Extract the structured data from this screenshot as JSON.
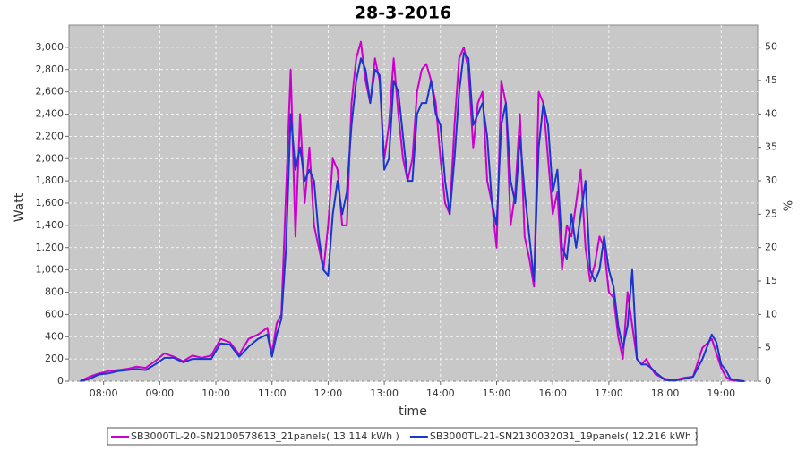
{
  "chart_data": {
    "type": "line",
    "title": "28-3-2016",
    "xlabel": "time",
    "ylabel": "Watt",
    "y2label": "%",
    "x": [
      "07:35",
      "07:45",
      "07:55",
      "08:05",
      "08:15",
      "08:25",
      "08:35",
      "08:45",
      "08:55",
      "09:05",
      "09:15",
      "09:25",
      "09:35",
      "09:45",
      "09:55",
      "10:05",
      "10:15",
      "10:25",
      "10:35",
      "10:45",
      "10:55",
      "11:00",
      "11:05",
      "11:10",
      "11:15",
      "11:20",
      "11:25",
      "11:30",
      "11:35",
      "11:40",
      "11:45",
      "11:50",
      "11:55",
      "12:00",
      "12:05",
      "12:10",
      "12:15",
      "12:20",
      "12:25",
      "12:30",
      "12:35",
      "12:40",
      "12:45",
      "12:50",
      "12:55",
      "13:00",
      "13:05",
      "13:10",
      "13:15",
      "13:20",
      "13:25",
      "13:30",
      "13:35",
      "13:40",
      "13:45",
      "13:50",
      "13:55",
      "14:00",
      "14:05",
      "14:10",
      "14:15",
      "14:20",
      "14:25",
      "14:30",
      "14:35",
      "14:40",
      "14:45",
      "14:50",
      "14:55",
      "15:00",
      "15:05",
      "15:10",
      "15:15",
      "15:20",
      "15:25",
      "15:30",
      "15:35",
      "15:40",
      "15:45",
      "15:50",
      "15:55",
      "16:00",
      "16:05",
      "16:10",
      "16:15",
      "16:20",
      "16:25",
      "16:30",
      "16:35",
      "16:40",
      "16:45",
      "16:50",
      "16:55",
      "17:00",
      "17:05",
      "17:10",
      "17:15",
      "17:20",
      "17:25",
      "17:30",
      "17:35",
      "17:40",
      "17:45",
      "17:50",
      "18:00",
      "18:10",
      "18:20",
      "18:30",
      "18:40",
      "18:50",
      "18:55",
      "19:00",
      "19:05",
      "19:10",
      "19:20",
      "19:25"
    ],
    "series": [
      {
        "name": "SB3000TL-20-SN2100578613_21panels( 13.114 kWh )",
        "color": "#cc00cc",
        "values": [
          0,
          40,
          70,
          90,
          100,
          110,
          130,
          120,
          180,
          250,
          220,
          180,
          230,
          210,
          230,
          380,
          350,
          240,
          380,
          420,
          480,
          250,
          520,
          600,
          1700,
          2800,
          1300,
          2400,
          1600,
          2100,
          1400,
          1200,
          1000,
          1400,
          2000,
          1900,
          1400,
          1400,
          2500,
          2900,
          3050,
          2700,
          2500,
          2900,
          2700,
          2000,
          2300,
          2900,
          2400,
          2000,
          1800,
          2000,
          2600,
          2800,
          2850,
          2700,
          2500,
          2000,
          1600,
          1500,
          2300,
          2900,
          3000,
          2800,
          2100,
          2500,
          2600,
          1800,
          1600,
          1200,
          2700,
          2500,
          1400,
          1700,
          2400,
          1300,
          1100,
          850,
          2600,
          2500,
          2000,
          1500,
          1700,
          1000,
          1400,
          1300,
          1600,
          1900,
          1200,
          900,
          1050,
          1300,
          1200,
          800,
          750,
          400,
          200,
          800,
          500,
          200,
          150,
          200,
          120,
          60,
          20,
          10,
          30,
          40,
          300,
          380,
          250,
          120,
          40,
          10,
          0,
          0
        ]
      },
      {
        "name": "SB3000TL-21-SN2130032031_19panels( 12.216 kWh )",
        "color": "#1a36cc",
        "values": [
          0,
          20,
          60,
          70,
          90,
          100,
          110,
          100,
          150,
          210,
          210,
          170,
          200,
          200,
          200,
          340,
          330,
          220,
          310,
          380,
          420,
          220,
          420,
          560,
          1200,
          2400,
          1900,
          2100,
          1800,
          1900,
          1800,
          1300,
          1000,
          950,
          1500,
          1800,
          1500,
          1700,
          2300,
          2700,
          2900,
          2800,
          2500,
          2800,
          2750,
          1900,
          2000,
          2700,
          2600,
          2200,
          1800,
          1800,
          2400,
          2500,
          2500,
          2700,
          2400,
          2300,
          1800,
          1500,
          2000,
          2600,
          2950,
          2900,
          2300,
          2400,
          2500,
          2200,
          1600,
          1400,
          2300,
          2500,
          1800,
          1600,
          2200,
          1700,
          1300,
          900,
          2100,
          2500,
          2300,
          1700,
          1900,
          1200,
          1100,
          1500,
          1200,
          1500,
          1800,
          1000,
          900,
          1000,
          1300,
          1000,
          850,
          500,
          300,
          500,
          1000,
          200,
          150,
          150,
          120,
          80,
          10,
          5,
          20,
          40,
          200,
          420,
          350,
          150,
          100,
          20,
          5,
          0
        ]
      }
    ],
    "xlim": [
      "07:23",
      "19:39"
    ],
    "xticks": [
      "08:00",
      "09:00",
      "10:00",
      "11:00",
      "12:00",
      "13:00",
      "14:00",
      "15:00",
      "16:00",
      "17:00",
      "18:00",
      "19:00"
    ],
    "ylim": [
      0,
      3200
    ],
    "yticks": [
      0,
      200,
      400,
      600,
      800,
      {
        "value": 1000,
        "label": "1,000"
      },
      {
        "value": 1200,
        "label": "1,200"
      },
      {
        "value": 1400,
        "label": "1,400"
      },
      {
        "value": 1600,
        "label": "1,600"
      },
      {
        "value": 1800,
        "label": "1,800"
      },
      {
        "value": 2000,
        "label": "2,000"
      },
      {
        "value": 2200,
        "label": "2,200"
      },
      {
        "value": 2400,
        "label": "2,400"
      },
      {
        "value": 2600,
        "label": "2,600"
      },
      {
        "value": 2800,
        "label": "2,800"
      },
      {
        "value": 3000,
        "label": "3,000"
      }
    ],
    "y2lim": [
      0,
      53.3
    ],
    "y2ticks": [
      0,
      5,
      10,
      15,
      20,
      25,
      30,
      35,
      40,
      45,
      50
    ],
    "grid": true,
    "legend": "bottom"
  }
}
